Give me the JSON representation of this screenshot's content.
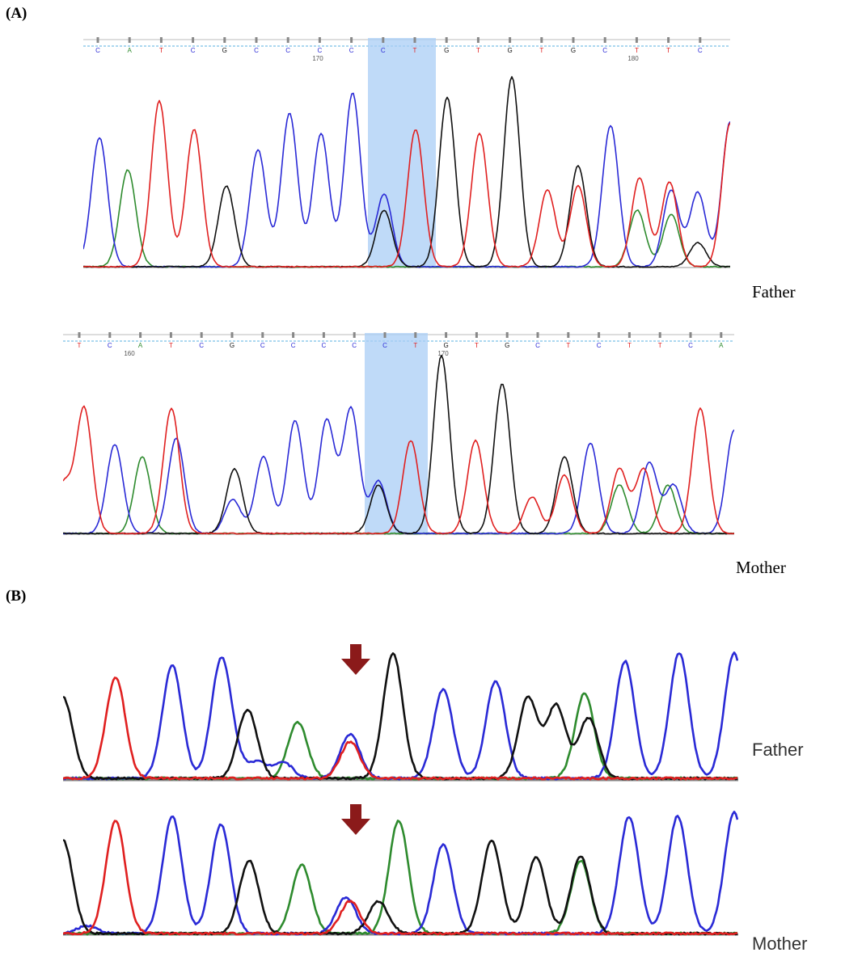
{
  "panels": {
    "a": {
      "label": "(A)",
      "father": {
        "caption": "Father",
        "bases": [
          "C",
          "A",
          "T",
          "C",
          "G",
          "C",
          "C",
          "C",
          "C",
          "C",
          "T",
          "G",
          "T",
          "G",
          "T",
          "G",
          "C",
          "T",
          "T",
          "C"
        ],
        "ticks": [
          "170",
          "180"
        ]
      },
      "mother": {
        "caption": "Mother",
        "bases": [
          "T",
          "C",
          "A",
          "T",
          "C",
          "G",
          "C",
          "C",
          "C",
          "C",
          "C",
          "T",
          "G",
          "T",
          "G",
          "C",
          "T",
          "C",
          "T",
          "T",
          "C",
          "A"
        ],
        "ticks": [
          "160",
          "170"
        ]
      }
    },
    "b": {
      "label": "(B)",
      "father_caption": "Father",
      "mother_caption": "Mother"
    }
  },
  "colors": {
    "A": "#2e8b2e",
    "C": "#2a2ad6",
    "G": "#111111",
    "T": "#e02020",
    "highlight": "#a9cdf5",
    "arrow": "#8b1a1a"
  }
}
